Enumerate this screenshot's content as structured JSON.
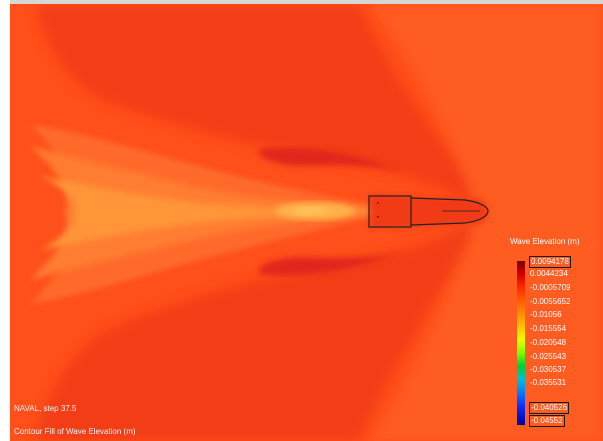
{
  "viewer": {
    "status_line": "NAVAL, step 37.5",
    "caption": "Contour Fill of Wave Elevation (m)"
  },
  "legend": {
    "title": "Wave Elevation (m)",
    "labels": [
      "0.0094178",
      "0.0044234",
      "-0.0005709",
      "-0.0055652",
      "-0.01056",
      "-0.015554",
      "-0.020548",
      "-0.025543",
      "-0.030537",
      "-0.035531",
      "-0.040526",
      "-0.04552"
    ]
  },
  "colors": {
    "background_field": "#ff5a1e",
    "crest": "#e8261a",
    "light_band": "#ff7a2e",
    "wake_core": "#ffa040",
    "wake_hot": "#ffc050",
    "hull_outline": "#222222"
  }
}
